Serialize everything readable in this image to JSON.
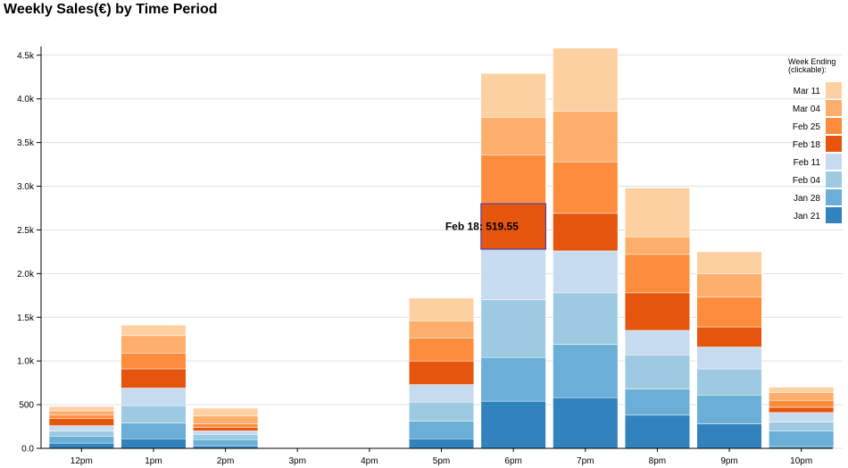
{
  "chart_data": {
    "type": "bar",
    "stacked": true,
    "title": "Weekly Sales(€) by Time Period",
    "xlabel": "",
    "ylabel": "",
    "ylim": [
      0,
      4600
    ],
    "y_ticks": [
      "0.0",
      "500",
      "1.0k",
      "1.5k",
      "2.0k",
      "2.5k",
      "3.0k",
      "3.5k",
      "4.0k",
      "4.5k"
    ],
    "y_tick_values": [
      0,
      500,
      1000,
      1500,
      2000,
      2500,
      3000,
      3500,
      4000,
      4500
    ],
    "grid": true,
    "legend_position": "right",
    "categories": [
      "12pm",
      "1pm",
      "2pm",
      "3pm",
      "4pm",
      "5pm",
      "6pm",
      "7pm",
      "8pm",
      "9pm",
      "10pm"
    ],
    "series": [
      {
        "name": "Jan 21",
        "color": "#3182bd",
        "values": [
          60,
          110,
          30,
          0,
          0,
          110,
          540,
          580,
          380,
          280,
          20
        ]
      },
      {
        "name": "Jan 28",
        "color": "#6baed6",
        "values": [
          80,
          180,
          70,
          0,
          0,
          200,
          500,
          610,
          300,
          330,
          180
        ]
      },
      {
        "name": "Feb 04",
        "color": "#9ecae1",
        "values": [
          60,
          200,
          60,
          0,
          0,
          220,
          660,
          590,
          390,
          300,
          100
        ]
      },
      {
        "name": "Feb 11",
        "color": "#c6dbef",
        "values": [
          60,
          200,
          40,
          0,
          0,
          200,
          580,
          480,
          280,
          250,
          110
        ]
      },
      {
        "name": "Feb 18",
        "color": "#e6550d",
        "values": [
          80,
          220,
          40,
          0,
          0,
          270,
          519.55,
          430,
          430,
          230,
          60
        ]
      },
      {
        "name": "Feb 25",
        "color": "#fd8d3c",
        "values": [
          40,
          180,
          40,
          0,
          0,
          260,
          560,
          590,
          440,
          340,
          80
        ]
      },
      {
        "name": "Mar 04",
        "color": "#fdae6b",
        "values": [
          50,
          200,
          90,
          0,
          0,
          200,
          430,
          580,
          200,
          270,
          90
        ]
      },
      {
        "name": "Mar 11",
        "color": "#fdd0a2",
        "values": [
          50,
          120,
          90,
          0,
          0,
          260,
          500,
          720,
          560,
          250,
          60
        ]
      }
    ],
    "tooltip": {
      "text": "Feb 18: 519.55",
      "series": "Feb 18",
      "category": "6pm"
    }
  },
  "legend": {
    "title_line1": "Week Ending",
    "title_line2": "(clickable):"
  }
}
